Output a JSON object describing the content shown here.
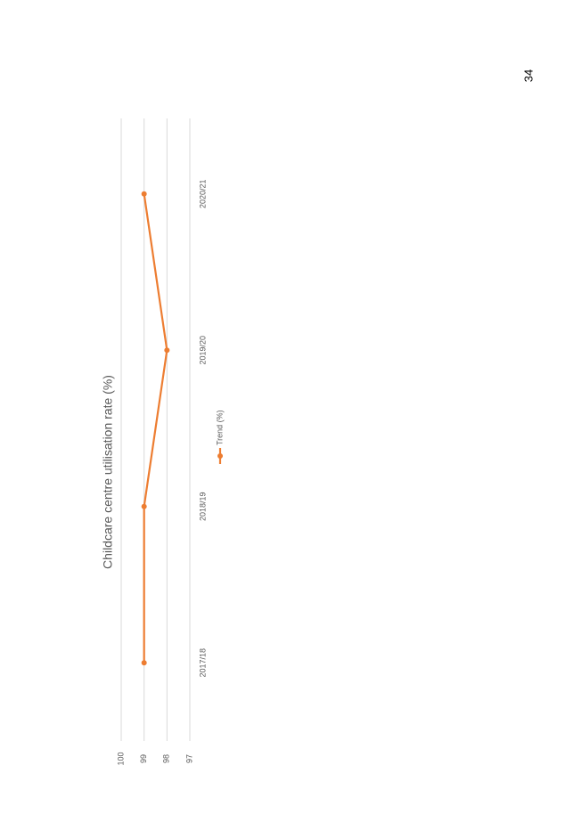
{
  "page_number": "34",
  "chart_data": {
    "type": "line",
    "title": "Childcare centre utilisation rate (%)",
    "categories": [
      "2017/18",
      "2018/19",
      "2019/20",
      "2020/21"
    ],
    "series": [
      {
        "name": "Trend (%)",
        "color": "#ed7d31",
        "values": [
          99,
          99,
          98,
          99
        ]
      }
    ],
    "ylim": [
      97,
      100
    ],
    "yticks": [
      97,
      98,
      99,
      100
    ],
    "grid": true
  }
}
